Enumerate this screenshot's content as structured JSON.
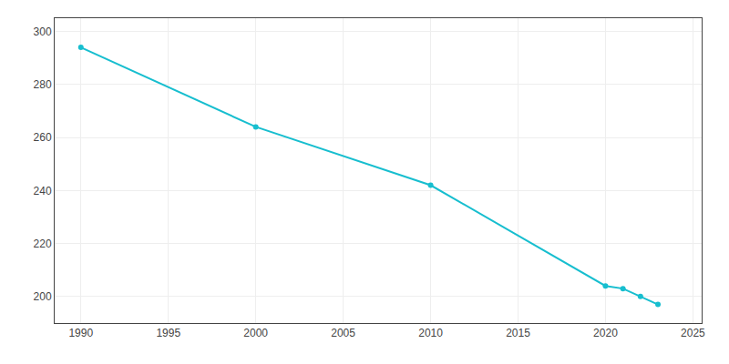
{
  "chart_data": {
    "type": "line",
    "x": [
      1990,
      2000,
      2010,
      2020,
      2021,
      2022,
      2023
    ],
    "values": [
      294,
      264,
      242,
      204,
      203,
      200,
      197
    ],
    "color": "#17becf",
    "marker": "circle",
    "xlim": [
      1988.5,
      2025.5
    ],
    "ylim": [
      190,
      305
    ],
    "xticks": [
      1990,
      1995,
      2000,
      2005,
      2010,
      2015,
      2020,
      2025
    ],
    "yticks": [
      200,
      220,
      240,
      260,
      280,
      300
    ],
    "grid": true
  }
}
